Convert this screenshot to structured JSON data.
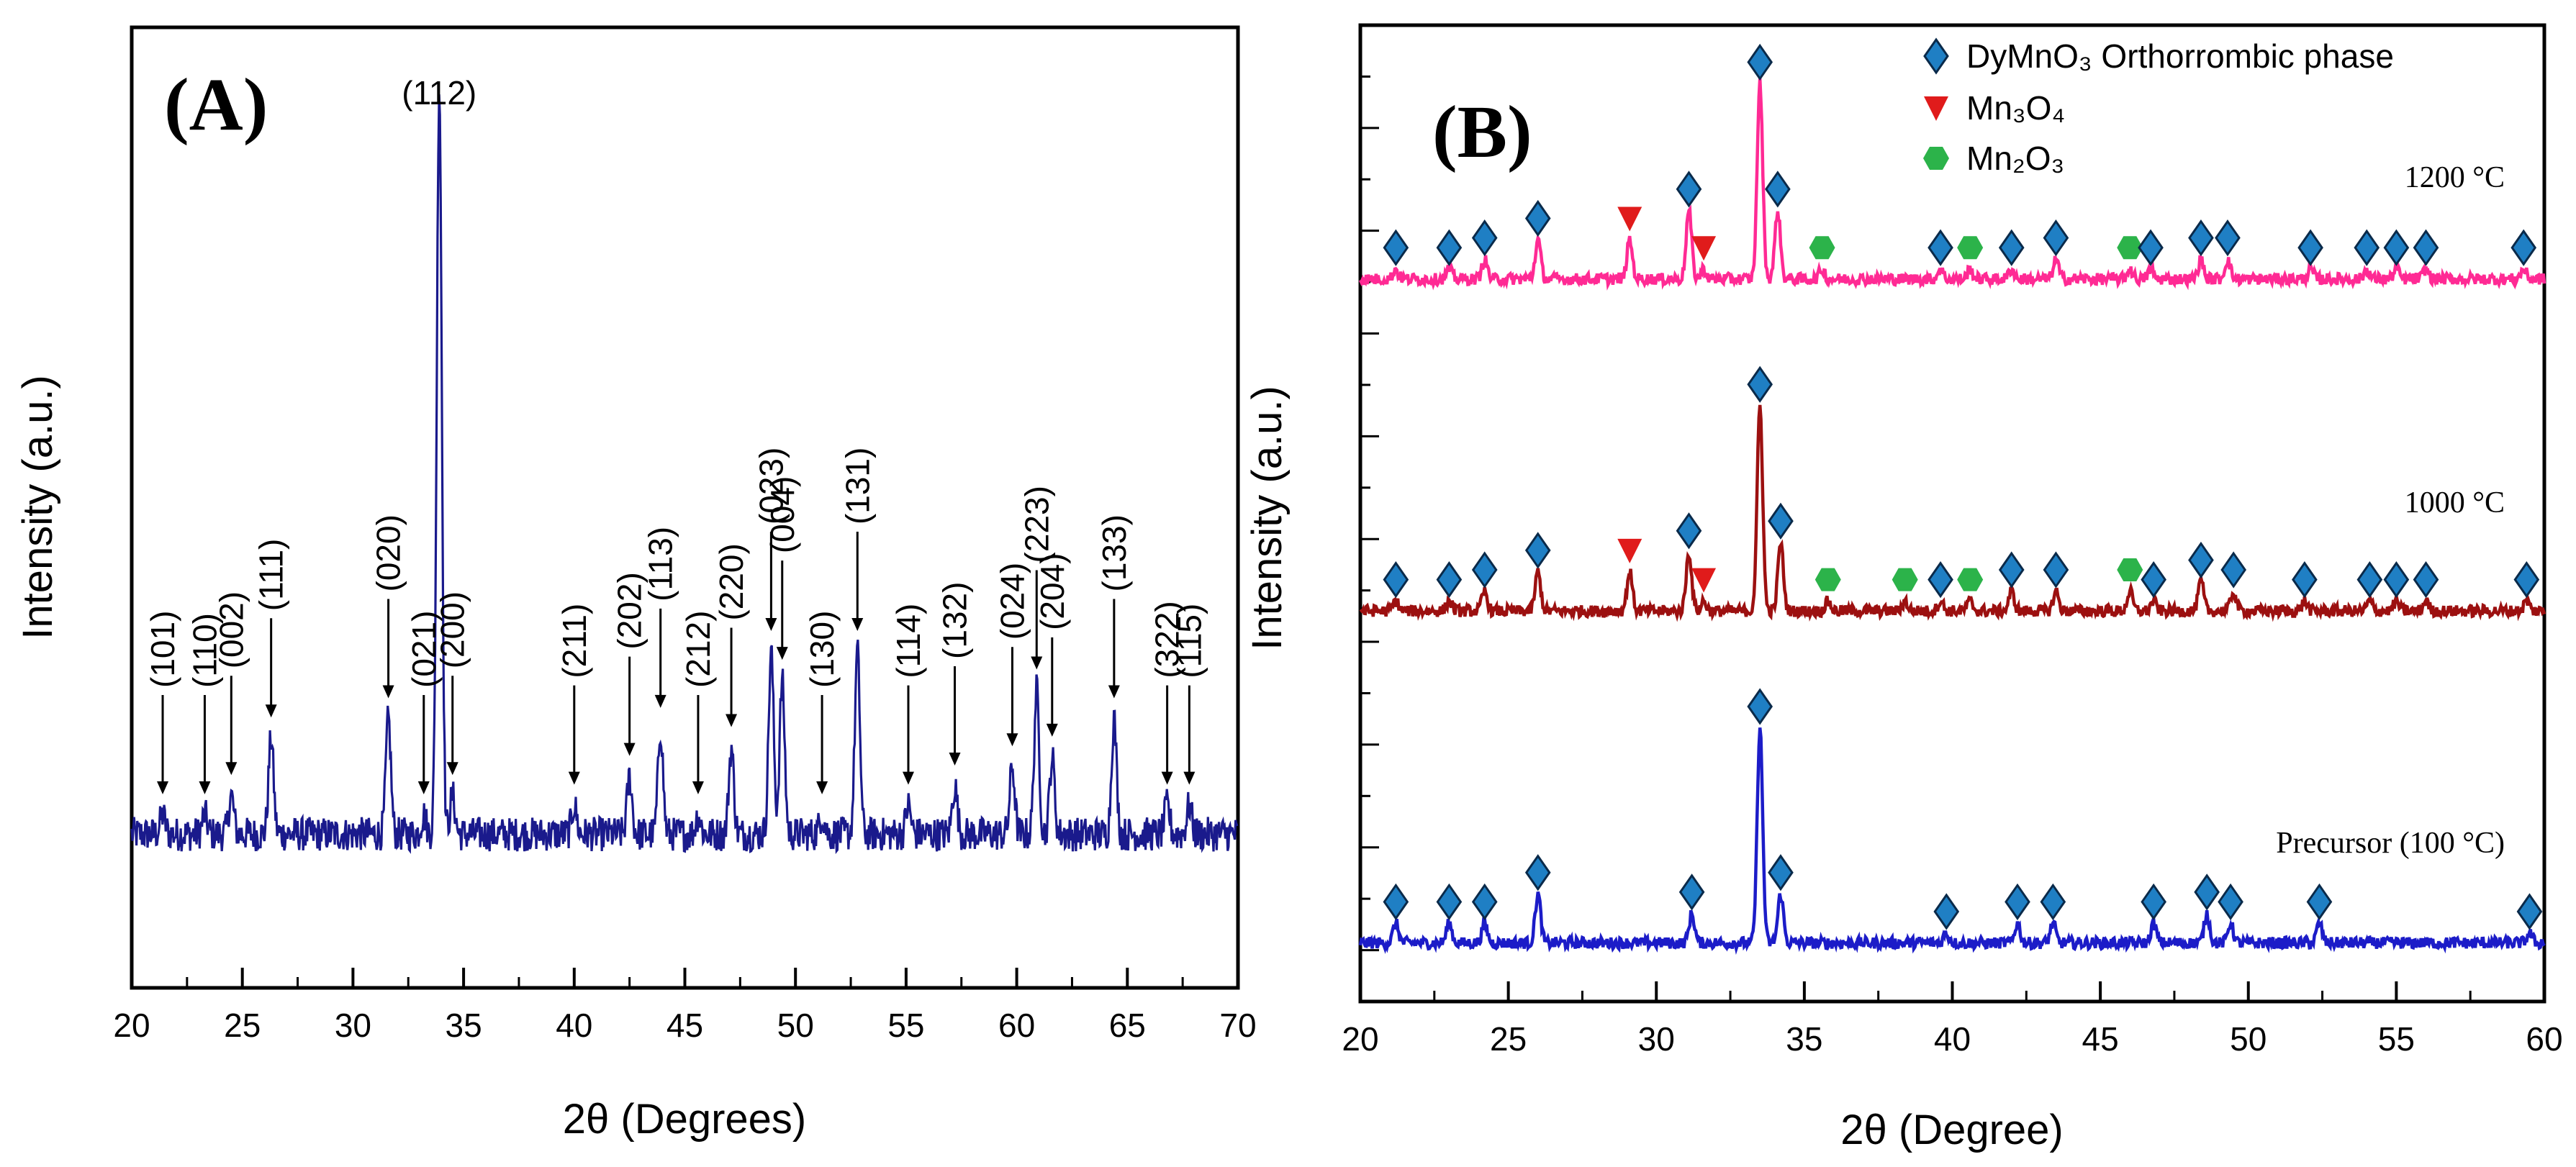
{
  "chart_data": [
    {
      "type": "line",
      "panel_label": "(A)",
      "xlabel": "2θ (Degrees)",
      "ylabel": "Intensity (a.u.)",
      "xlim": [
        20,
        70
      ],
      "ylim": [
        0,
        100
      ],
      "xticks": [
        "20",
        "25",
        "30",
        "35",
        "40",
        "45",
        "50",
        "55",
        "60",
        "65",
        "70"
      ],
      "color": "#1a1a8c",
      "baseline": 16,
      "peaks": [
        {
          "x": 21.4,
          "h": 2
        },
        {
          "x": 23.3,
          "h": 2
        },
        {
          "x": 24.5,
          "h": 4
        },
        {
          "x": 26.3,
          "h": 10
        },
        {
          "x": 31.6,
          "h": 12
        },
        {
          "x": 33.2,
          "h": 2
        },
        {
          "x": 33.9,
          "h": 78
        },
        {
          "x": 34.5,
          "h": 4
        },
        {
          "x": 40.0,
          "h": 3
        },
        {
          "x": 42.5,
          "h": 6
        },
        {
          "x": 43.9,
          "h": 11
        },
        {
          "x": 45.6,
          "h": 2
        },
        {
          "x": 47.1,
          "h": 9
        },
        {
          "x": 48.9,
          "h": 19
        },
        {
          "x": 49.4,
          "h": 16
        },
        {
          "x": 51.2,
          "h": 2
        },
        {
          "x": 52.8,
          "h": 19
        },
        {
          "x": 55.1,
          "h": 3
        },
        {
          "x": 57.2,
          "h": 5
        },
        {
          "x": 59.8,
          "h": 7
        },
        {
          "x": 60.9,
          "h": 15
        },
        {
          "x": 61.6,
          "h": 8
        },
        {
          "x": 64.4,
          "h": 12
        },
        {
          "x": 66.8,
          "h": 3
        },
        {
          "x": 67.8,
          "h": 3
        }
      ],
      "annotations": [
        {
          "text": "(101)",
          "x": 21.4
        },
        {
          "text": "(110)",
          "x": 23.3
        },
        {
          "text": "(002)",
          "x": 24.5
        },
        {
          "text": "(111)",
          "x": 26.3
        },
        {
          "text": "(020)",
          "x": 31.6
        },
        {
          "text": "(021)",
          "x": 33.2
        },
        {
          "text": "(112)",
          "x": 33.9
        },
        {
          "text": "(200)",
          "x": 34.5
        },
        {
          "text": "(211)",
          "x": 40.0
        },
        {
          "text": "(202)",
          "x": 42.5
        },
        {
          "text": "(113)",
          "x": 43.9
        },
        {
          "text": "(212)",
          "x": 45.6
        },
        {
          "text": "(220)",
          "x": 47.1
        },
        {
          "text": "(023)",
          "x": 48.9
        },
        {
          "text": "(004)",
          "x": 49.4
        },
        {
          "text": "(130)",
          "x": 51.2
        },
        {
          "text": "(131)",
          "x": 52.8
        },
        {
          "text": "(114)",
          "x": 55.1
        },
        {
          "text": "(132)",
          "x": 57.2
        },
        {
          "text": "(024)",
          "x": 59.8
        },
        {
          "text": "(223)",
          "x": 60.9
        },
        {
          "text": "(204)",
          "x": 61.6
        },
        {
          "text": "(133)",
          "x": 64.4
        },
        {
          "text": "(322)",
          "x": 66.8
        },
        {
          "text": "(115)",
          "x": 67.8
        }
      ]
    },
    {
      "type": "line",
      "panel_label": "(B)",
      "xlabel": "2θ (Degree)",
      "ylabel": "Intensity (a.u.)",
      "xlim": [
        20,
        60
      ],
      "ylim": [
        0,
        100
      ],
      "xticks": [
        "20",
        "25",
        "30",
        "35",
        "40",
        "45",
        "50",
        "55",
        "60"
      ],
      "legend": [
        {
          "marker": "diamond",
          "text": "DyMnO₃ Orthorrombic phase",
          "color": "#1f7fc4"
        },
        {
          "marker": "triangle",
          "text": "Mn₃O₄",
          "color": "#e01b1b"
        },
        {
          "marker": "circle",
          "text": "Mn₂O₃",
          "color": "#2cb34a"
        }
      ],
      "series": [
        {
          "name": "Precursor (100 °C)",
          "color": "#1c1cc8",
          "baseline": 6,
          "peaks": [
            {
              "x": 21.2,
              "h": 2
            },
            {
              "x": 23.0,
              "h": 2
            },
            {
              "x": 24.2,
              "h": 2
            },
            {
              "x": 26.0,
              "h": 5
            },
            {
              "x": 31.2,
              "h": 3
            },
            {
              "x": 33.5,
              "h": 22
            },
            {
              "x": 34.2,
              "h": 5
            },
            {
              "x": 39.8,
              "h": 1
            },
            {
              "x": 42.2,
              "h": 2
            },
            {
              "x": 43.4,
              "h": 2
            },
            {
              "x": 46.8,
              "h": 2
            },
            {
              "x": 48.6,
              "h": 3
            },
            {
              "x": 49.4,
              "h": 2
            },
            {
              "x": 52.4,
              "h": 2
            },
            {
              "x": 59.5,
              "h": 1
            }
          ],
          "markers": [
            {
              "type": "diamond",
              "x": 21.2
            },
            {
              "type": "diamond",
              "x": 23.0
            },
            {
              "type": "diamond",
              "x": 24.2
            },
            {
              "type": "diamond",
              "x": 26.0
            },
            {
              "type": "diamond",
              "x": 31.2
            },
            {
              "type": "diamond",
              "x": 33.5
            },
            {
              "type": "diamond",
              "x": 34.2
            },
            {
              "type": "diamond",
              "x": 39.8
            },
            {
              "type": "diamond",
              "x": 42.2
            },
            {
              "type": "diamond",
              "x": 43.4
            },
            {
              "type": "diamond",
              "x": 46.8
            },
            {
              "type": "diamond",
              "x": 48.6
            },
            {
              "type": "diamond",
              "x": 49.4
            },
            {
              "type": "diamond",
              "x": 52.4
            },
            {
              "type": "diamond",
              "x": 59.5
            }
          ]
        },
        {
          "name": "1000 °C",
          "color": "#9c1010",
          "baseline": 40,
          "peaks": [
            {
              "x": 21.2,
              "h": 1
            },
            {
              "x": 23.0,
              "h": 1
            },
            {
              "x": 24.2,
              "h": 2
            },
            {
              "x": 26.0,
              "h": 4
            },
            {
              "x": 29.1,
              "h": 4
            },
            {
              "x": 31.1,
              "h": 6
            },
            {
              "x": 31.6,
              "h": 1
            },
            {
              "x": 33.5,
              "h": 21
            },
            {
              "x": 34.2,
              "h": 7
            },
            {
              "x": 35.8,
              "h": 1
            },
            {
              "x": 38.4,
              "h": 1
            },
            {
              "x": 39.6,
              "h": 1
            },
            {
              "x": 40.6,
              "h": 1
            },
            {
              "x": 42.0,
              "h": 2
            },
            {
              "x": 43.5,
              "h": 2
            },
            {
              "x": 46.0,
              "h": 2
            },
            {
              "x": 46.8,
              "h": 1
            },
            {
              "x": 48.4,
              "h": 3
            },
            {
              "x": 49.5,
              "h": 2
            },
            {
              "x": 51.9,
              "h": 1
            },
            {
              "x": 54.1,
              "h": 1
            },
            {
              "x": 55.0,
              "h": 1
            },
            {
              "x": 56.0,
              "h": 1
            },
            {
              "x": 59.4,
              "h": 1
            }
          ],
          "markers": [
            {
              "type": "diamond",
              "x": 21.2
            },
            {
              "type": "diamond",
              "x": 23.0
            },
            {
              "type": "diamond",
              "x": 24.2
            },
            {
              "type": "diamond",
              "x": 26.0
            },
            {
              "type": "triangle",
              "x": 29.1
            },
            {
              "type": "diamond",
              "x": 31.1
            },
            {
              "type": "triangle",
              "x": 31.6
            },
            {
              "type": "diamond",
              "x": 33.5
            },
            {
              "type": "diamond",
              "x": 34.2
            },
            {
              "type": "circle",
              "x": 35.8
            },
            {
              "type": "circle",
              "x": 38.4
            },
            {
              "type": "diamond",
              "x": 39.6
            },
            {
              "type": "circle",
              "x": 40.6
            },
            {
              "type": "diamond",
              "x": 42.0
            },
            {
              "type": "diamond",
              "x": 43.5
            },
            {
              "type": "circle",
              "x": 46.0
            },
            {
              "type": "diamond",
              "x": 46.8
            },
            {
              "type": "diamond",
              "x": 48.4
            },
            {
              "type": "diamond",
              "x": 49.5
            },
            {
              "type": "diamond",
              "x": 51.9
            },
            {
              "type": "diamond",
              "x": 54.1
            },
            {
              "type": "diamond",
              "x": 55.0
            },
            {
              "type": "diamond",
              "x": 56.0
            },
            {
              "type": "diamond",
              "x": 59.4
            }
          ]
        },
        {
          "name": "1200 °C",
          "color": "#ff2a94",
          "baseline": 74,
          "peaks": [
            {
              "x": 21.2,
              "h": 1
            },
            {
              "x": 23.0,
              "h": 1
            },
            {
              "x": 24.2,
              "h": 2
            },
            {
              "x": 26.0,
              "h": 4
            },
            {
              "x": 29.1,
              "h": 4
            },
            {
              "x": 31.1,
              "h": 7
            },
            {
              "x": 31.6,
              "h": 1
            },
            {
              "x": 33.5,
              "h": 20
            },
            {
              "x": 34.1,
              "h": 7
            },
            {
              "x": 35.6,
              "h": 1
            },
            {
              "x": 39.6,
              "h": 1
            },
            {
              "x": 40.6,
              "h": 1
            },
            {
              "x": 42.0,
              "h": 1
            },
            {
              "x": 43.5,
              "h": 2
            },
            {
              "x": 46.0,
              "h": 1
            },
            {
              "x": 46.7,
              "h": 1
            },
            {
              "x": 48.4,
              "h": 2
            },
            {
              "x": 49.3,
              "h": 2
            },
            {
              "x": 52.1,
              "h": 1
            },
            {
              "x": 54.0,
              "h": 1
            },
            {
              "x": 55.0,
              "h": 1
            },
            {
              "x": 56.0,
              "h": 1
            },
            {
              "x": 59.3,
              "h": 1
            }
          ],
          "markers": [
            {
              "type": "diamond",
              "x": 21.2
            },
            {
              "type": "diamond",
              "x": 23.0
            },
            {
              "type": "diamond",
              "x": 24.2
            },
            {
              "type": "diamond",
              "x": 26.0
            },
            {
              "type": "triangle",
              "x": 29.1
            },
            {
              "type": "diamond",
              "x": 31.1
            },
            {
              "type": "triangle",
              "x": 31.6
            },
            {
              "type": "diamond",
              "x": 33.5
            },
            {
              "type": "diamond",
              "x": 34.1
            },
            {
              "type": "circle",
              "x": 35.6
            },
            {
              "type": "diamond",
              "x": 39.6
            },
            {
              "type": "circle",
              "x": 40.6
            },
            {
              "type": "diamond",
              "x": 42.0
            },
            {
              "type": "diamond",
              "x": 43.5
            },
            {
              "type": "circle",
              "x": 46.0
            },
            {
              "type": "diamond",
              "x": 46.7
            },
            {
              "type": "diamond",
              "x": 48.4
            },
            {
              "type": "diamond",
              "x": 49.3
            },
            {
              "type": "diamond",
              "x": 52.1
            },
            {
              "type": "diamond",
              "x": 54.0
            },
            {
              "type": "diamond",
              "x": 55.0
            },
            {
              "type": "diamond",
              "x": 56.0
            },
            {
              "type": "diamond",
              "x": 59.3
            }
          ]
        }
      ]
    }
  ]
}
